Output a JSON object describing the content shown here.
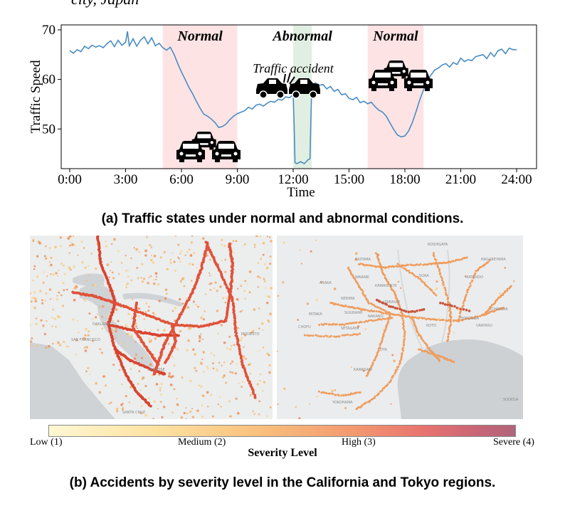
{
  "header_fragment": "city, Japan",
  "chart_data": {
    "type": "line",
    "title": "",
    "xlabel": "Time",
    "ylabel": "Traffic Speed",
    "xlim": [
      0,
      24
    ],
    "ylim": [
      42,
      71
    ],
    "x_ticks": [
      "0:00",
      "3:00",
      "6:00",
      "9:00",
      "12:00",
      "15:00",
      "18:00",
      "21:00",
      "24:00"
    ],
    "y_ticks": [
      50,
      60,
      70
    ],
    "series": [
      {
        "name": "Traffic Speed",
        "color": "#4a8cc4",
        "x": [
          0,
          0.2,
          0.4,
          0.6,
          0.8,
          1.0,
          1.2,
          1.4,
          1.6,
          1.8,
          2.0,
          2.2,
          2.4,
          2.6,
          2.8,
          3.0,
          3.1,
          3.2,
          3.4,
          3.6,
          3.8,
          4.0,
          4.2,
          4.4,
          4.6,
          4.8,
          5.0,
          5.2,
          5.4,
          5.6,
          5.8,
          6.0,
          6.2,
          6.4,
          6.6,
          6.8,
          7.0,
          7.2,
          7.4,
          7.6,
          7.8,
          8.0,
          8.2,
          8.4,
          8.6,
          8.8,
          9.0,
          9.2,
          9.4,
          9.6,
          9.8,
          10.0,
          10.2,
          10.4,
          10.6,
          10.8,
          11.0,
          11.2,
          11.4,
          11.6,
          11.8,
          12.0,
          12.05,
          12.1,
          12.2,
          12.4,
          12.6,
          12.8,
          12.9,
          12.95,
          13.0,
          13.2,
          13.4,
          13.6,
          13.8,
          14.0,
          14.2,
          14.4,
          14.6,
          14.8,
          15.0,
          15.2,
          15.4,
          15.6,
          15.8,
          16.0,
          16.2,
          16.4,
          16.6,
          16.8,
          17.0,
          17.2,
          17.4,
          17.6,
          17.8,
          18.0,
          18.2,
          18.4,
          18.6,
          18.8,
          19.0,
          19.2,
          19.4,
          19.6,
          19.8,
          20.0,
          20.2,
          20.4,
          20.6,
          20.8,
          21.0,
          21.2,
          21.4,
          21.6,
          21.8,
          22.0,
          22.2,
          22.4,
          22.6,
          22.8,
          23.0,
          23.2,
          23.4,
          23.6,
          23.8,
          24.0
        ],
        "values": [
          65.8,
          65.3,
          66.0,
          65.6,
          66.7,
          66.2,
          66.9,
          66.5,
          66.8,
          66.4,
          67.2,
          67.8,
          66.6,
          67.9,
          66.9,
          67.5,
          69.7,
          66.8,
          68.2,
          66.7,
          67.9,
          68.6,
          67.2,
          68.4,
          66.8,
          67.3,
          66.4,
          65.9,
          66.5,
          65.1,
          63.2,
          61.5,
          60.0,
          58.4,
          57.1,
          55.6,
          54.2,
          53.0,
          52.6,
          52.0,
          51.3,
          50.3,
          50.5,
          51.0,
          51.9,
          52.6,
          53.1,
          53.4,
          53.7,
          54.4,
          54.0,
          54.8,
          55.0,
          54.6,
          55.2,
          55.6,
          55.4,
          56.0,
          55.8,
          56.5,
          56.3,
          56.9,
          51.0,
          43.2,
          43.0,
          43.4,
          43.0,
          43.8,
          44.0,
          52.0,
          58.9,
          59.3,
          58.8,
          59.0,
          58.1,
          58.6,
          57.6,
          58.0,
          56.9,
          57.1,
          56.2,
          55.9,
          56.4,
          55.3,
          55.6,
          55.1,
          55.4,
          54.5,
          53.8,
          53.4,
          52.6,
          51.2,
          49.9,
          48.8,
          48.4,
          48.6,
          49.6,
          51.3,
          53.5,
          55.9,
          57.9,
          59.6,
          60.9,
          61.9,
          62.3,
          62.9,
          63.2,
          62.5,
          63.4,
          63.0,
          64.3,
          63.6,
          64.0,
          63.8,
          64.6,
          64.8,
          65.0,
          64.2,
          65.4,
          64.6,
          65.8,
          66.1,
          65.2,
          66.3,
          66.0,
          66.0
        ]
      }
    ],
    "annotations": [
      {
        "text": "Normal",
        "x_start": 5,
        "x_end": 9,
        "color": "#fde3e4"
      },
      {
        "text": "Abnormal",
        "x_start": 12,
        "x_end": 13,
        "color": "#e0efe1"
      },
      {
        "text": "Normal",
        "x_start": 16,
        "x_end": 19,
        "color": "#fde3e4"
      }
    ],
    "accident_label": "Traffic accident"
  },
  "captions": {
    "a": "(a) Traffic states under normal and abnormal conditions.",
    "b": "(b) Accidents by severity level in the California and Tokyo regions."
  },
  "map_labels": {
    "california": [
      "OAKLAND",
      "SAN FRANCISCO",
      "MODESTO",
      "SANTA CRUZ",
      "SAN JOSE"
    ],
    "tokyo": [
      "SAITAMA",
      "KOSHIGAYA",
      "NAGAREYAMA",
      "WARABI",
      "KAWAGUCHI",
      "SOKA",
      "ASAKA",
      "MATSUDO",
      "NERIMA",
      "ITABASHI",
      "ICHIKAWA",
      "MITAKA",
      "SUGINAMI",
      "NAKANO",
      "EDOGAWA",
      "CHOFU",
      "SETAGAYA",
      "URAYASU",
      "KOTO",
      "OTA",
      "KAWASAKI",
      "YOKOHAMA",
      "SODEGA"
    ]
  },
  "colorbar": {
    "title": "Severity Level",
    "ticks": [
      "Low (1)",
      "Medium (2)",
      "High (3)",
      "Severe (4)"
    ]
  }
}
